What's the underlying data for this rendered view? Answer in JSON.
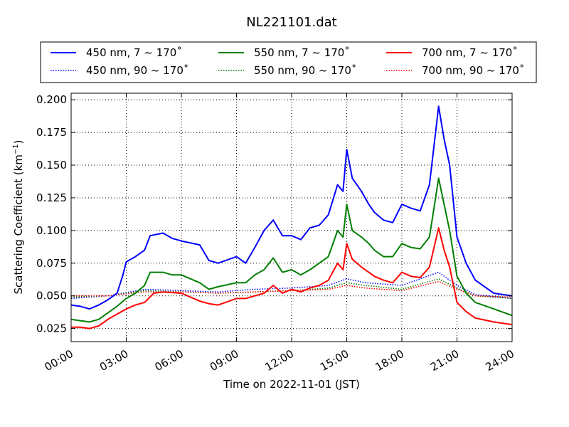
{
  "chart_data": {
    "type": "line",
    "title": "NL221101.dat",
    "xlabel": "Time on 2022-11-01 (JST)",
    "ylabel_main": "Scattering Coefficient (km",
    "ylabel_sup": "−1",
    "ylabel_tail": ")",
    "x_ticks": [
      "00:00",
      "03:00",
      "06:00",
      "09:00",
      "12:00",
      "15:00",
      "18:00",
      "21:00",
      "24:00"
    ],
    "x_range_hours": [
      0,
      24
    ],
    "y_ticks": [
      "0.025",
      "0.050",
      "0.075",
      "0.100",
      "0.125",
      "0.150",
      "0.175",
      "0.200"
    ],
    "ylim": [
      0.015,
      0.205
    ],
    "grid": true,
    "legend_position": "top, above plot, 3 columns",
    "series": [
      {
        "name": "450 nm, 7 ~ 170˚",
        "color": "#0000ff",
        "style": "solid",
        "points": [
          [
            0,
            0.043
          ],
          [
            0.5,
            0.042
          ],
          [
            1,
            0.04
          ],
          [
            1.5,
            0.043
          ],
          [
            2,
            0.047
          ],
          [
            2.5,
            0.052
          ],
          [
            2.8,
            0.065
          ],
          [
            3,
            0.076
          ],
          [
            3.5,
            0.08
          ],
          [
            4,
            0.085
          ],
          [
            4.3,
            0.096
          ],
          [
            5,
            0.098
          ],
          [
            5.5,
            0.094
          ],
          [
            6,
            0.092
          ],
          [
            7,
            0.089
          ],
          [
            7.5,
            0.077
          ],
          [
            8,
            0.075
          ],
          [
            9,
            0.08
          ],
          [
            9.5,
            0.075
          ],
          [
            10,
            0.087
          ],
          [
            10.5,
            0.1
          ],
          [
            11,
            0.108
          ],
          [
            11.5,
            0.096
          ],
          [
            12,
            0.096
          ],
          [
            12.5,
            0.093
          ],
          [
            13,
            0.102
          ],
          [
            13.5,
            0.104
          ],
          [
            14,
            0.112
          ],
          [
            14.5,
            0.135
          ],
          [
            14.8,
            0.13
          ],
          [
            15,
            0.162
          ],
          [
            15.3,
            0.14
          ],
          [
            15.8,
            0.13
          ],
          [
            16.2,
            0.12
          ],
          [
            16.5,
            0.114
          ],
          [
            17,
            0.108
          ],
          [
            17.5,
            0.106
          ],
          [
            18,
            0.12
          ],
          [
            18.5,
            0.117
          ],
          [
            19,
            0.115
          ],
          [
            19.5,
            0.135
          ],
          [
            20,
            0.195
          ],
          [
            20.3,
            0.17
          ],
          [
            20.6,
            0.15
          ],
          [
            21,
            0.095
          ],
          [
            21.5,
            0.075
          ],
          [
            22,
            0.062
          ],
          [
            23,
            0.052
          ],
          [
            24,
            0.05
          ]
        ]
      },
      {
        "name": "450 nm, 90 ~ 170˚",
        "color": "#0000ff",
        "style": "dotted",
        "points": [
          [
            0,
            0.048
          ],
          [
            2,
            0.05
          ],
          [
            4,
            0.055
          ],
          [
            6,
            0.054
          ],
          [
            8,
            0.053
          ],
          [
            10,
            0.055
          ],
          [
            12,
            0.056
          ],
          [
            14,
            0.058
          ],
          [
            15,
            0.063
          ],
          [
            16,
            0.06
          ],
          [
            18,
            0.058
          ],
          [
            20,
            0.068
          ],
          [
            21,
            0.058
          ],
          [
            22,
            0.051
          ],
          [
            24,
            0.048
          ]
        ]
      },
      {
        "name": "550 nm, 7 ~ 170˚",
        "color": "#007f00",
        "style": "solid",
        "points": [
          [
            0,
            0.032
          ],
          [
            0.5,
            0.031
          ],
          [
            1,
            0.03
          ],
          [
            1.5,
            0.032
          ],
          [
            2,
            0.037
          ],
          [
            2.5,
            0.042
          ],
          [
            3,
            0.048
          ],
          [
            3.5,
            0.052
          ],
          [
            4,
            0.058
          ],
          [
            4.3,
            0.068
          ],
          [
            5,
            0.068
          ],
          [
            5.5,
            0.066
          ],
          [
            6,
            0.066
          ],
          [
            7,
            0.06
          ],
          [
            7.5,
            0.055
          ],
          [
            8,
            0.057
          ],
          [
            9,
            0.06
          ],
          [
            9.5,
            0.06
          ],
          [
            10,
            0.066
          ],
          [
            10.5,
            0.07
          ],
          [
            11,
            0.079
          ],
          [
            11.5,
            0.068
          ],
          [
            12,
            0.07
          ],
          [
            12.5,
            0.066
          ],
          [
            13,
            0.07
          ],
          [
            13.5,
            0.075
          ],
          [
            14,
            0.08
          ],
          [
            14.5,
            0.1
          ],
          [
            14.8,
            0.095
          ],
          [
            15,
            0.12
          ],
          [
            15.3,
            0.1
          ],
          [
            15.8,
            0.095
          ],
          [
            16.2,
            0.09
          ],
          [
            16.5,
            0.085
          ],
          [
            17,
            0.08
          ],
          [
            17.5,
            0.08
          ],
          [
            18,
            0.09
          ],
          [
            18.5,
            0.087
          ],
          [
            19,
            0.086
          ],
          [
            19.5,
            0.095
          ],
          [
            20,
            0.14
          ],
          [
            20.3,
            0.12
          ],
          [
            20.6,
            0.1
          ],
          [
            21,
            0.065
          ],
          [
            21.5,
            0.052
          ],
          [
            22,
            0.045
          ],
          [
            23,
            0.04
          ],
          [
            24,
            0.035
          ]
        ]
      },
      {
        "name": "550 nm, 90 ~ 170˚",
        "color": "#007f00",
        "style": "dotted",
        "points": [
          [
            0,
            0.049
          ],
          [
            2,
            0.05
          ],
          [
            4,
            0.054
          ],
          [
            6,
            0.053
          ],
          [
            8,
            0.052
          ],
          [
            10,
            0.053
          ],
          [
            12,
            0.054
          ],
          [
            14,
            0.056
          ],
          [
            15,
            0.06
          ],
          [
            16,
            0.058
          ],
          [
            18,
            0.055
          ],
          [
            20,
            0.063
          ],
          [
            21,
            0.056
          ],
          [
            22,
            0.05
          ],
          [
            24,
            0.048
          ]
        ]
      },
      {
        "name": "700 nm, 7 ~ 170˚",
        "color": "#ff0000",
        "style": "solid",
        "points": [
          [
            0,
            0.026
          ],
          [
            0.5,
            0.026
          ],
          [
            1,
            0.025
          ],
          [
            1.5,
            0.027
          ],
          [
            2,
            0.032
          ],
          [
            2.5,
            0.036
          ],
          [
            3,
            0.04
          ],
          [
            3.5,
            0.043
          ],
          [
            4,
            0.045
          ],
          [
            4.5,
            0.052
          ],
          [
            5,
            0.053
          ],
          [
            6,
            0.052
          ],
          [
            7,
            0.046
          ],
          [
            7.5,
            0.044
          ],
          [
            8,
            0.043
          ],
          [
            9,
            0.048
          ],
          [
            9.5,
            0.048
          ],
          [
            10,
            0.05
          ],
          [
            10.5,
            0.052
          ],
          [
            11,
            0.058
          ],
          [
            11.5,
            0.052
          ],
          [
            12,
            0.055
          ],
          [
            12.5,
            0.053
          ],
          [
            13,
            0.056
          ],
          [
            13.5,
            0.058
          ],
          [
            14,
            0.062
          ],
          [
            14.5,
            0.075
          ],
          [
            14.8,
            0.07
          ],
          [
            15,
            0.09
          ],
          [
            15.3,
            0.078
          ],
          [
            15.8,
            0.072
          ],
          [
            16.2,
            0.068
          ],
          [
            16.5,
            0.065
          ],
          [
            17,
            0.062
          ],
          [
            17.5,
            0.06
          ],
          [
            18,
            0.068
          ],
          [
            18.5,
            0.065
          ],
          [
            19,
            0.064
          ],
          [
            19.5,
            0.072
          ],
          [
            20,
            0.102
          ],
          [
            20.3,
            0.085
          ],
          [
            20.6,
            0.072
          ],
          [
            21,
            0.045
          ],
          [
            21.5,
            0.038
          ],
          [
            22,
            0.033
          ],
          [
            23,
            0.03
          ],
          [
            24,
            0.028
          ]
        ]
      },
      {
        "name": "700 nm, 90 ~ 170˚",
        "color": "#ff0000",
        "style": "dotted",
        "points": [
          [
            0,
            0.05
          ],
          [
            2,
            0.05
          ],
          [
            4,
            0.053
          ],
          [
            6,
            0.053
          ],
          [
            8,
            0.052
          ],
          [
            10,
            0.053
          ],
          [
            12,
            0.054
          ],
          [
            14,
            0.055
          ],
          [
            15,
            0.058
          ],
          [
            16,
            0.056
          ],
          [
            18,
            0.054
          ],
          [
            20,
            0.061
          ],
          [
            21,
            0.055
          ],
          [
            22,
            0.05
          ],
          [
            24,
            0.049
          ]
        ]
      }
    ]
  }
}
